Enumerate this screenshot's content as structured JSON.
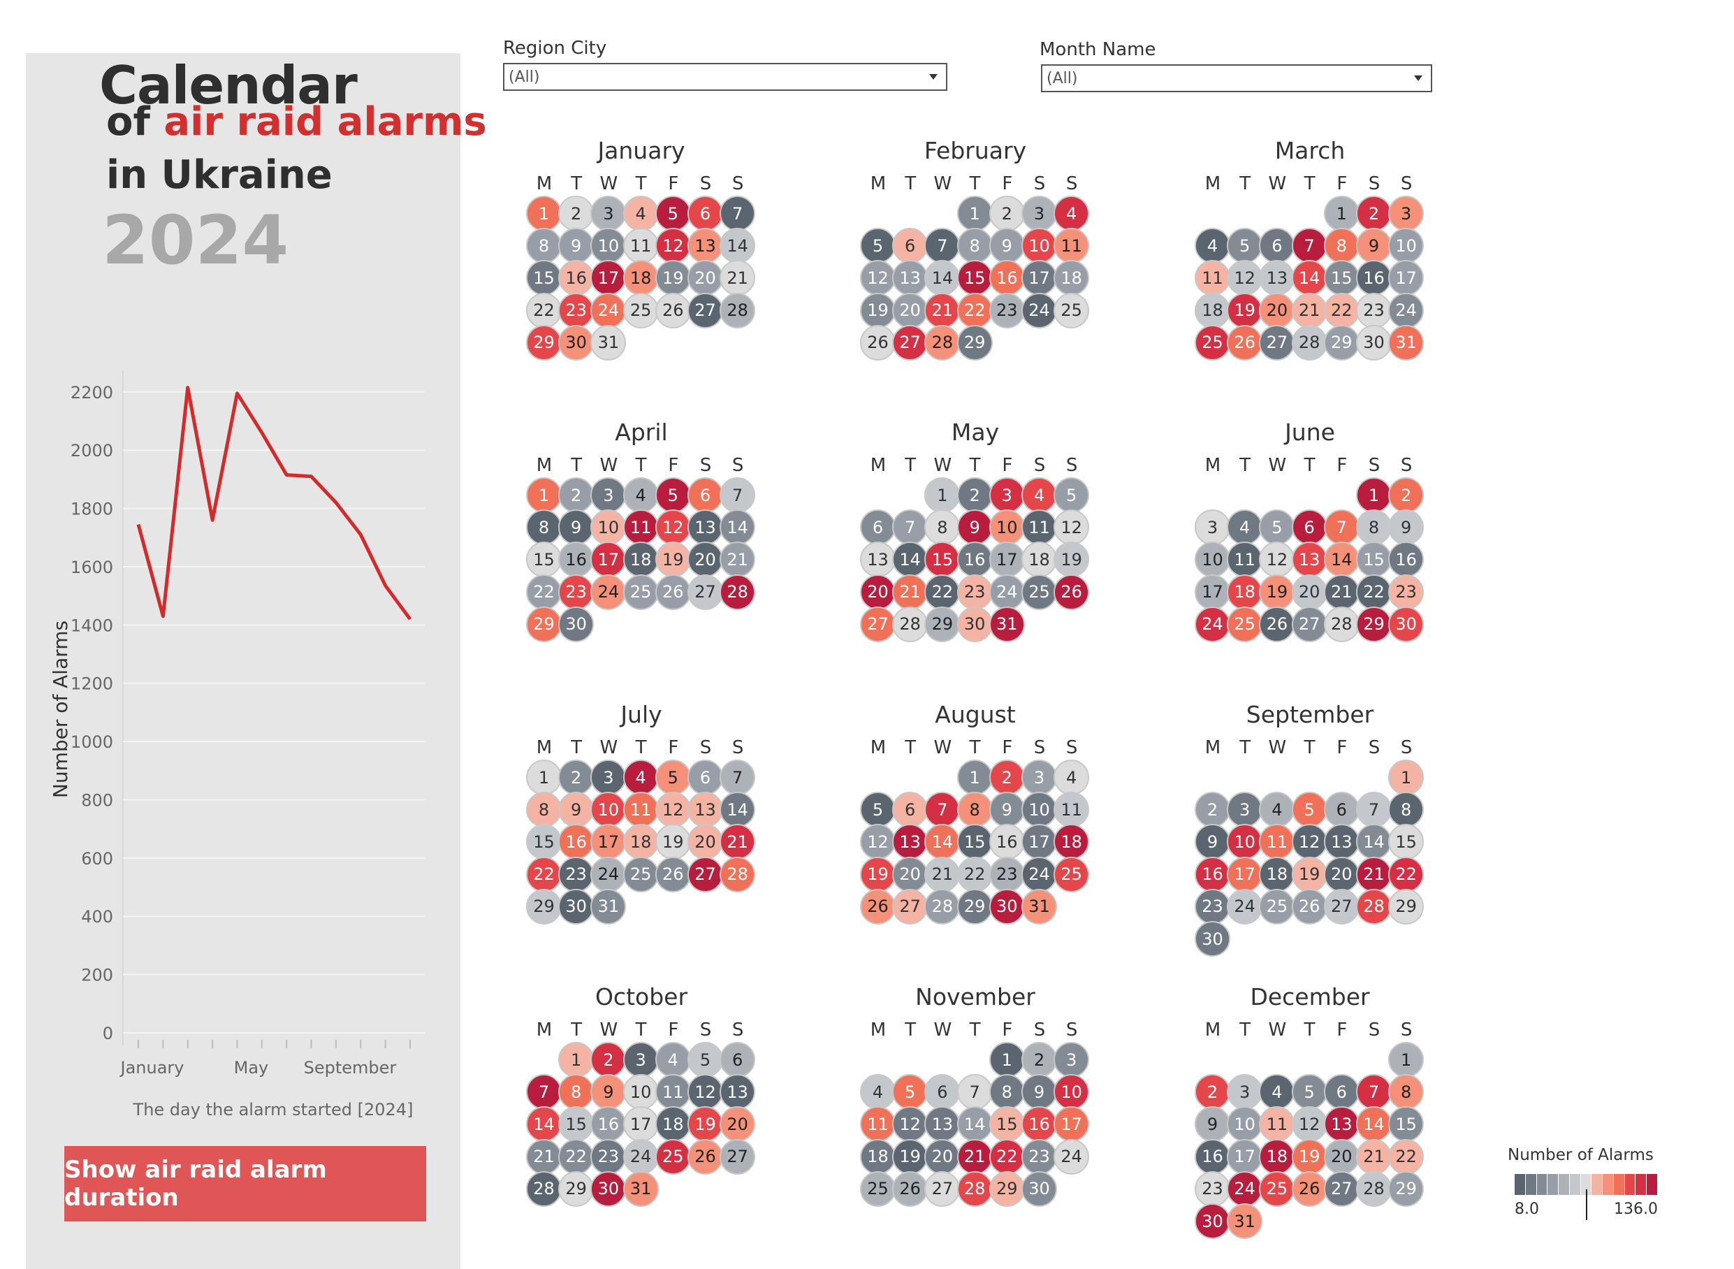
{
  "title": {
    "line1": "Calendar",
    "line2_prefix": "of ",
    "line2_highlight": "air raid alarms",
    "line3": "in Ukraine",
    "year": "2024"
  },
  "filters": [
    {
      "label": "Region City",
      "value": "(All)"
    },
    {
      "label": "Month Name",
      "value": "(All)"
    }
  ],
  "button": {
    "label": "Show air raid alarm duration"
  },
  "weekdays": [
    "M",
    "T",
    "W",
    "T",
    "F",
    "S",
    "S"
  ],
  "months": [
    {
      "name": "January",
      "days": 31,
      "startDow": 0
    },
    {
      "name": "February",
      "days": 29,
      "startDow": 3
    },
    {
      "name": "March",
      "days": 31,
      "startDow": 4
    },
    {
      "name": "April",
      "days": 30,
      "startDow": 0
    },
    {
      "name": "May",
      "days": 31,
      "startDow": 2
    },
    {
      "name": "June",
      "days": 30,
      "startDow": 5
    },
    {
      "name": "July",
      "days": 31,
      "startDow": 0
    },
    {
      "name": "August",
      "days": 31,
      "startDow": 3
    },
    {
      "name": "September",
      "days": 30,
      "startDow": 6
    },
    {
      "name": "October",
      "days": 31,
      "startDow": 1
    },
    {
      "name": "November",
      "days": 30,
      "startDow": 4
    },
    {
      "name": "December",
      "days": 31,
      "startDow": 6
    }
  ],
  "legend": {
    "title": "Number of Alarms",
    "min": "8.0",
    "max": "136.0",
    "colors": [
      "#5b6570",
      "#6f7883",
      "#838b95",
      "#979ea7",
      "#adb2b9",
      "#c4c8cc",
      "#dcdcdc",
      "#f4b3a3",
      "#f59179",
      "#f07058",
      "#e5464a",
      "#d42f42",
      "#b81d3e"
    ]
  },
  "chart_data": {
    "type": "line",
    "x": [
      "January",
      "February",
      "March",
      "April",
      "May",
      "June",
      "July",
      "August",
      "September",
      "October",
      "November",
      "December"
    ],
    "series": [
      {
        "values": [
          1745,
          1430,
          2215,
          1760,
          2195,
          2060,
          1915,
          1910,
          1820,
          1710,
          1535,
          1420
        ]
      }
    ],
    "xticks": [
      "January",
      "May",
      "September"
    ],
    "yticks": [
      0,
      200,
      400,
      600,
      800,
      1000,
      1200,
      1400,
      1600,
      1800,
      2000,
      2200
    ],
    "ylim": [
      0,
      2250
    ],
    "ylabel": "Number of Alarms",
    "xlabel": "The day the alarm started [2024]",
    "line_color": "#d42a2a",
    "grid": true
  }
}
